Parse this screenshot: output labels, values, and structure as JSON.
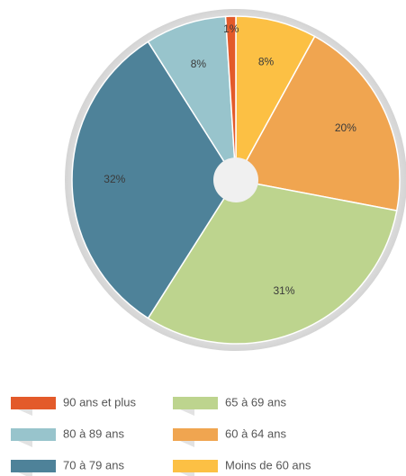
{
  "chart_data": {
    "type": "pie",
    "categories": [
      "Moins de 60 ans",
      "60 à 64 ans",
      "65 à 69 ans",
      "70 à 79 ans",
      "80 à 89 ans",
      "90 ans et plus"
    ],
    "values": [
      8,
      20,
      31,
      32,
      8,
      1
    ],
    "value_labels": [
      "8%",
      "20%",
      "31%",
      "32%",
      "8%",
      "1%"
    ],
    "colors": [
      "#fcc044",
      "#f0a550",
      "#bdd48e",
      "#4e8299",
      "#98c4cc",
      "#e35a2a"
    ],
    "legend": "bottom"
  }
}
